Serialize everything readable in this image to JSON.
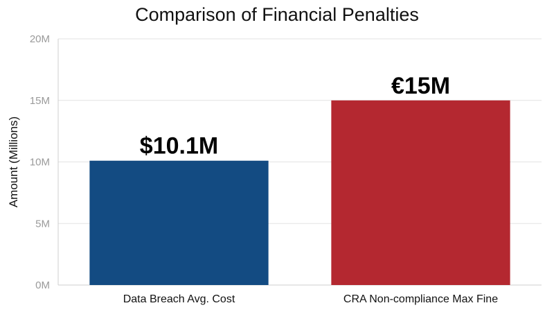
{
  "chart_data": {
    "type": "bar",
    "title": "Comparison of Financial Penalties",
    "xlabel": "",
    "ylabel": "Amount (Millions)",
    "ylim": [
      0,
      20
    ],
    "yticks": [
      0,
      5,
      10,
      15,
      20
    ],
    "ytick_labels": [
      "0M",
      "5M",
      "10M",
      "15M",
      "20M"
    ],
    "grid": true,
    "categories": [
      "Data Breach Avg. Cost",
      "CRA Non-compliance Max Fine"
    ],
    "values": [
      10.1,
      15
    ],
    "data_labels": [
      "$10.1M",
      "€15M"
    ],
    "colors": [
      "#134b82",
      "#b42830"
    ]
  }
}
